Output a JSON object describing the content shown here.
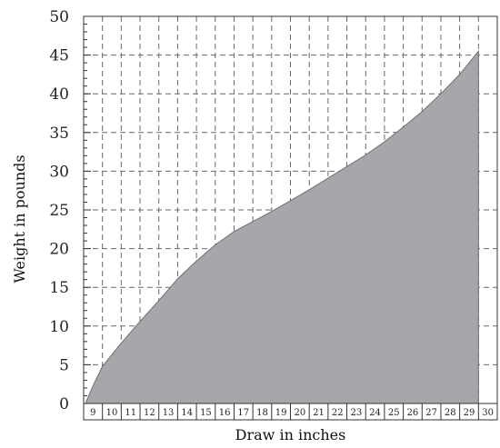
{
  "chart_data": {
    "type": "area",
    "title": "",
    "xlabel": "Draw in inches",
    "ylabel": "Weight in pounds",
    "x_ticks": [
      "9",
      "10",
      "11",
      "12",
      "13",
      "14",
      "15",
      "16",
      "17",
      "18",
      "19",
      "20",
      "21",
      "22",
      "23",
      "24",
      "25",
      "26",
      "27",
      "28",
      "29",
      "30"
    ],
    "y_ticks": [
      "0",
      "5",
      "10",
      "15",
      "20",
      "25",
      "30",
      "35",
      "40",
      "45",
      "50"
    ],
    "xlim": [
      9,
      30
    ],
    "ylim": [
      0,
      50
    ],
    "grid": true,
    "legend": "none",
    "series": [
      {
        "x": [
          9.1,
          9.5,
          10,
          11,
          12,
          13,
          14,
          15,
          16,
          17,
          18,
          19,
          20,
          21,
          22,
          23,
          24,
          25,
          26,
          27,
          28,
          29,
          30
        ],
        "values": [
          0,
          2.3,
          4.8,
          7.8,
          10.6,
          13.3,
          16.1,
          18.4,
          20.5,
          22.2,
          23.5,
          24.8,
          26.2,
          27.6,
          29.1,
          30.6,
          32.1,
          33.8,
          35.7,
          37.7,
          40.0,
          42.5,
          45.5
        ]
      }
    ],
    "colors": {
      "fill": "#a6a7aa",
      "line": "#6d6e71",
      "grid": "#6a6a6a",
      "axis": "#333333"
    }
  }
}
